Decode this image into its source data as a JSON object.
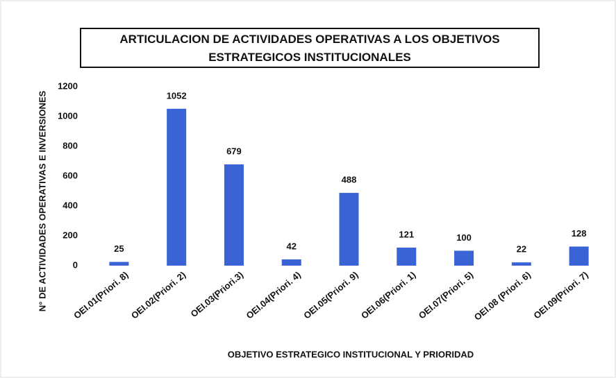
{
  "chart_data": {
    "type": "bar",
    "title": "ARTICULACION DE ACTIVIDADES OPERATIVAS A LOS OBJETIVOS ESTRATEGICOS INSTITUCIONALES",
    "x_label": "OBJETIVO ESTRATEGICO  INSTITUCIONAL  Y PRIORIDAD",
    "y_label": "N° DE ACTIVIDADES OPERATIVAS  E INVERSIONES",
    "categories": [
      "OEI.01(Priori. 8)",
      "OEI.02(Priori. 2)",
      "OEI.03(Priori.3)",
      "OEI.04(Priori. 4)",
      "OEI.05(Priori. 9)",
      "OEI.06(Priori. 1)",
      "OEI.07(Priori. 5)",
      "OEI.08 (Priori. 6)",
      "OEI.09(Priori. 7)"
    ],
    "values": [
      25,
      1052,
      679,
      42,
      488,
      121,
      100,
      22,
      128
    ],
    "color": "#3a63d6",
    "ylim": [
      0,
      1200
    ],
    "yticks": [
      0,
      200,
      400,
      600,
      800,
      1000,
      1200
    ],
    "grid": false
  }
}
